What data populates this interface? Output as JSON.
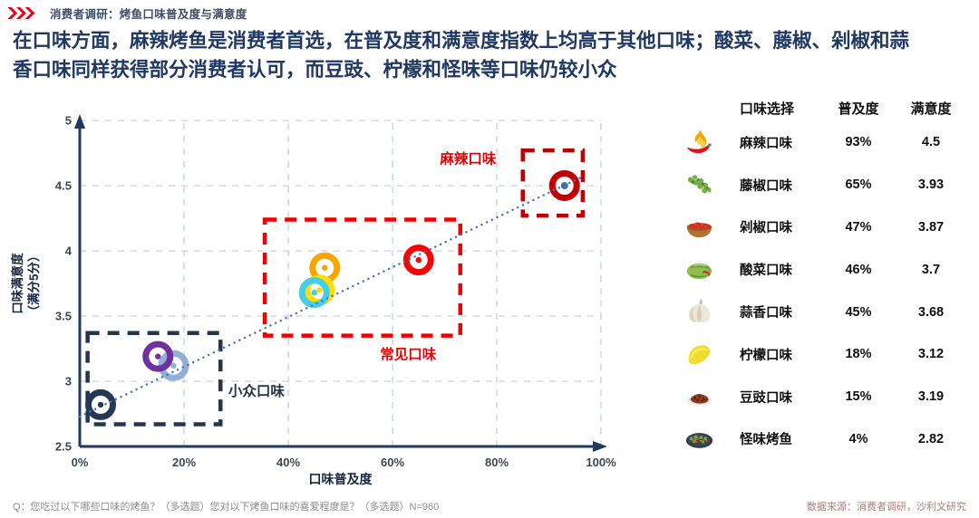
{
  "header": {
    "label": "消费者调研：烤鱼口味普及度与满意度",
    "logo_icon": "chevrons-logo-icon"
  },
  "title": "在口味方面，麻辣烤鱼是消费者首选，在普及度和满意度指数上均高于其他口味；酸菜、藤椒、剁椒和蒜香口味同样获得部分消费者认可，而豆豉、柠檬和怪味等口味仍较小众",
  "legend": {
    "headers": [
      "口味选择",
      "普及度",
      "满意度"
    ],
    "rows": [
      {
        "icon": "flaming-chili-icon",
        "dot_color": "#C00000",
        "label": "麻辣口味",
        "popularity": "93%",
        "satisfaction": "4.5"
      },
      {
        "icon": "sichuan-pepper-icon",
        "dot_color": "#FE0000",
        "label": "藤椒口味",
        "popularity": "65%",
        "satisfaction": "3.93"
      },
      {
        "icon": "chopped-chili-bowl-icon",
        "dot_color": "#F7A600",
        "label": "剁椒口味",
        "popularity": "47%",
        "satisfaction": "3.87"
      },
      {
        "icon": "pickled-vegetable-icon",
        "dot_color": "#FFDE00",
        "label": "酸菜口味",
        "popularity": "46%",
        "satisfaction": "3.7"
      },
      {
        "icon": "garlic-icon",
        "dot_color": "#46CEE8",
        "label": "蒜香口味",
        "popularity": "45%",
        "satisfaction": "3.68"
      },
      {
        "icon": "lemon-icon",
        "dot_color": "#92AFD7",
        "label": "柠檬口味",
        "popularity": "18%",
        "satisfaction": "3.12"
      },
      {
        "icon": "black-bean-dish-icon",
        "dot_color": "#7030A0",
        "label": "豆豉口味",
        "popularity": "15%",
        "satisfaction": "3.19"
      },
      {
        "icon": "grilled-fish-icon",
        "dot_color": "#243A52",
        "label": "怪味烤鱼",
        "popularity": "4%",
        "satisfaction": "2.82"
      }
    ]
  },
  "chart_data": {
    "type": "scatter",
    "title": "烤鱼口味普及度与满意度",
    "xlabel": "口味普及度",
    "ylabel": "口味满意度",
    "ylabel_sub": "（满分5分）",
    "xlim": [
      0,
      100
    ],
    "ylim": [
      2.5,
      5
    ],
    "x_ticks": [
      {
        "value": 0,
        "label": "0%"
      },
      {
        "value": 20,
        "label": "20%"
      },
      {
        "value": 40,
        "label": "40%"
      },
      {
        "value": 60,
        "label": "60%"
      },
      {
        "value": 80,
        "label": "80%"
      },
      {
        "value": 100,
        "label": "100%"
      }
    ],
    "y_ticks": [
      {
        "value": 2.5,
        "label": "2.5"
      },
      {
        "value": 3,
        "label": "3"
      },
      {
        "value": 3.5,
        "label": "3.5"
      },
      {
        "value": 4,
        "label": "4"
      },
      {
        "value": 4.5,
        "label": "4.5"
      },
      {
        "value": 5,
        "label": "5"
      }
    ],
    "grid": {
      "h_color": "#D9D9D9",
      "v_color": "#C3D5EC"
    },
    "axis_color": "#20395C",
    "tick_color": "#3E4653",
    "points": [
      {
        "label": "麻辣口味",
        "x": 93,
        "y": 4.5,
        "color": "#C00000",
        "center_dot": "#3E6FB8"
      },
      {
        "label": "藤椒口味",
        "x": 65,
        "y": 3.93,
        "color": "#FE0000"
      },
      {
        "label": "剁椒口味",
        "x": 47,
        "y": 3.87,
        "color": "#F7A600"
      },
      {
        "label": "酸菜口味",
        "x": 46,
        "y": 3.7,
        "color": "#FFDE00"
      },
      {
        "label": "蒜香口味",
        "x": 45,
        "y": 3.68,
        "color": "#46CEE8"
      },
      {
        "label": "柠檬口味",
        "x": 18,
        "y": 3.12,
        "color": "#92AFD7"
      },
      {
        "label": "豆豉口味",
        "x": 15,
        "y": 3.19,
        "color": "#7030A0"
      },
      {
        "label": "怪味烤鱼",
        "x": 4,
        "y": 2.82,
        "color": "#243A52"
      }
    ],
    "trend": {
      "x1": 0,
      "y1": 2.73,
      "x2": 96.5,
      "y2": 4.57,
      "color": "#4472C4"
    },
    "groups": [
      {
        "label": "小众口味",
        "color": "#22364E",
        "box_x": [
          1.5,
          27
        ],
        "box_y": [
          2.67,
          3.37
        ],
        "label_x": 28.5,
        "label_y": 2.89,
        "anchor": "start"
      },
      {
        "label": "常见口味",
        "color": "#F00000",
        "box_x": [
          35.5,
          73
        ],
        "box_y": [
          3.35,
          4.24
        ],
        "label_x": 63,
        "label_y": 3.17,
        "anchor": "middle"
      },
      {
        "label": "麻辣口味",
        "color": "#C00000",
        "label_color": "#E00000",
        "box_x": [
          85,
          96.5
        ],
        "box_y": [
          4.27,
          4.77
        ],
        "label_x": 74.5,
        "label_y": 4.67,
        "anchor": "middle"
      }
    ]
  },
  "footer": {
    "left": "Q：您吃过以下哪些口味的烤鱼？（多选题）您对以下烤鱼口味的喜爱程度是？（多选题）N=960",
    "right": "数据来源：消费者调研，沙利文研究"
  }
}
